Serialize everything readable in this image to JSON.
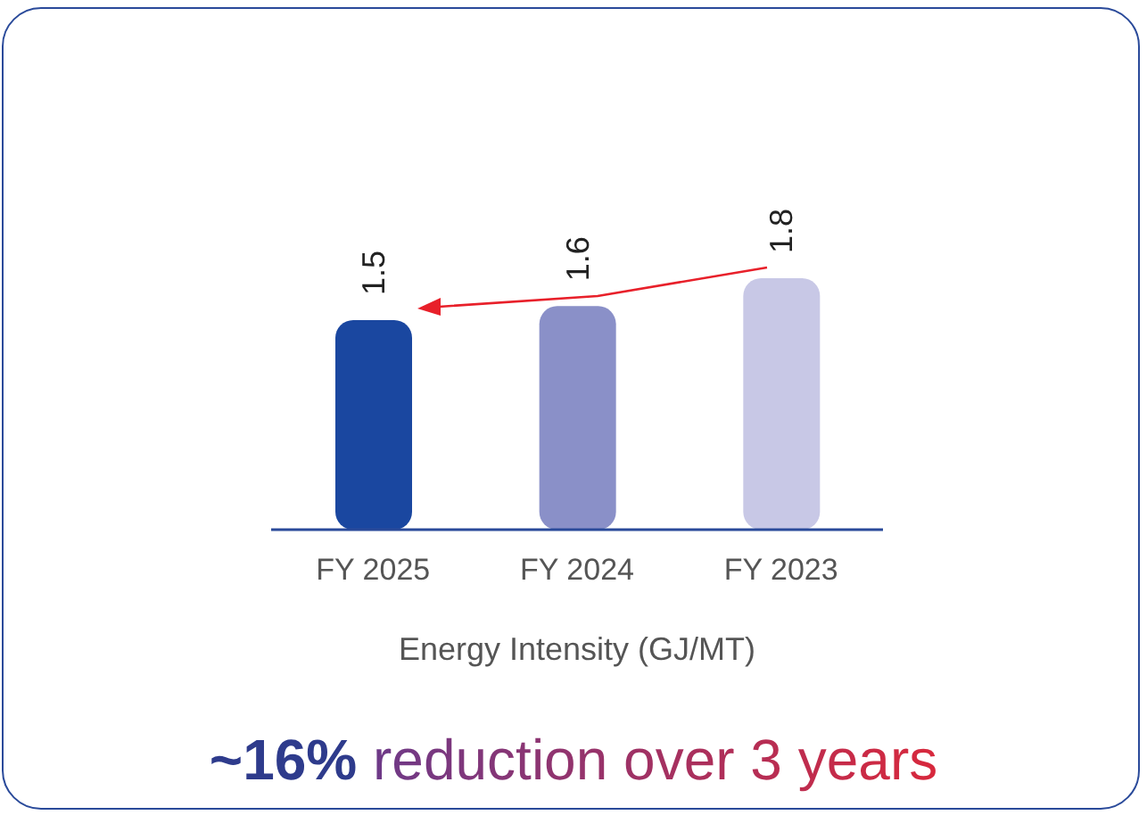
{
  "chart_data": {
    "type": "bar",
    "categories": [
      "FY 2025",
      "FY 2024",
      "FY 2023"
    ],
    "values": [
      1.5,
      1.6,
      1.8
    ],
    "colors": [
      "#1a47a0",
      "#8a90c8",
      "#c8c8e6"
    ],
    "data_labels": true,
    "xlabel": "Energy Intensity (GJ/MT)",
    "annotations": [
      "~16% reduction over 3 years"
    ]
  }
}
